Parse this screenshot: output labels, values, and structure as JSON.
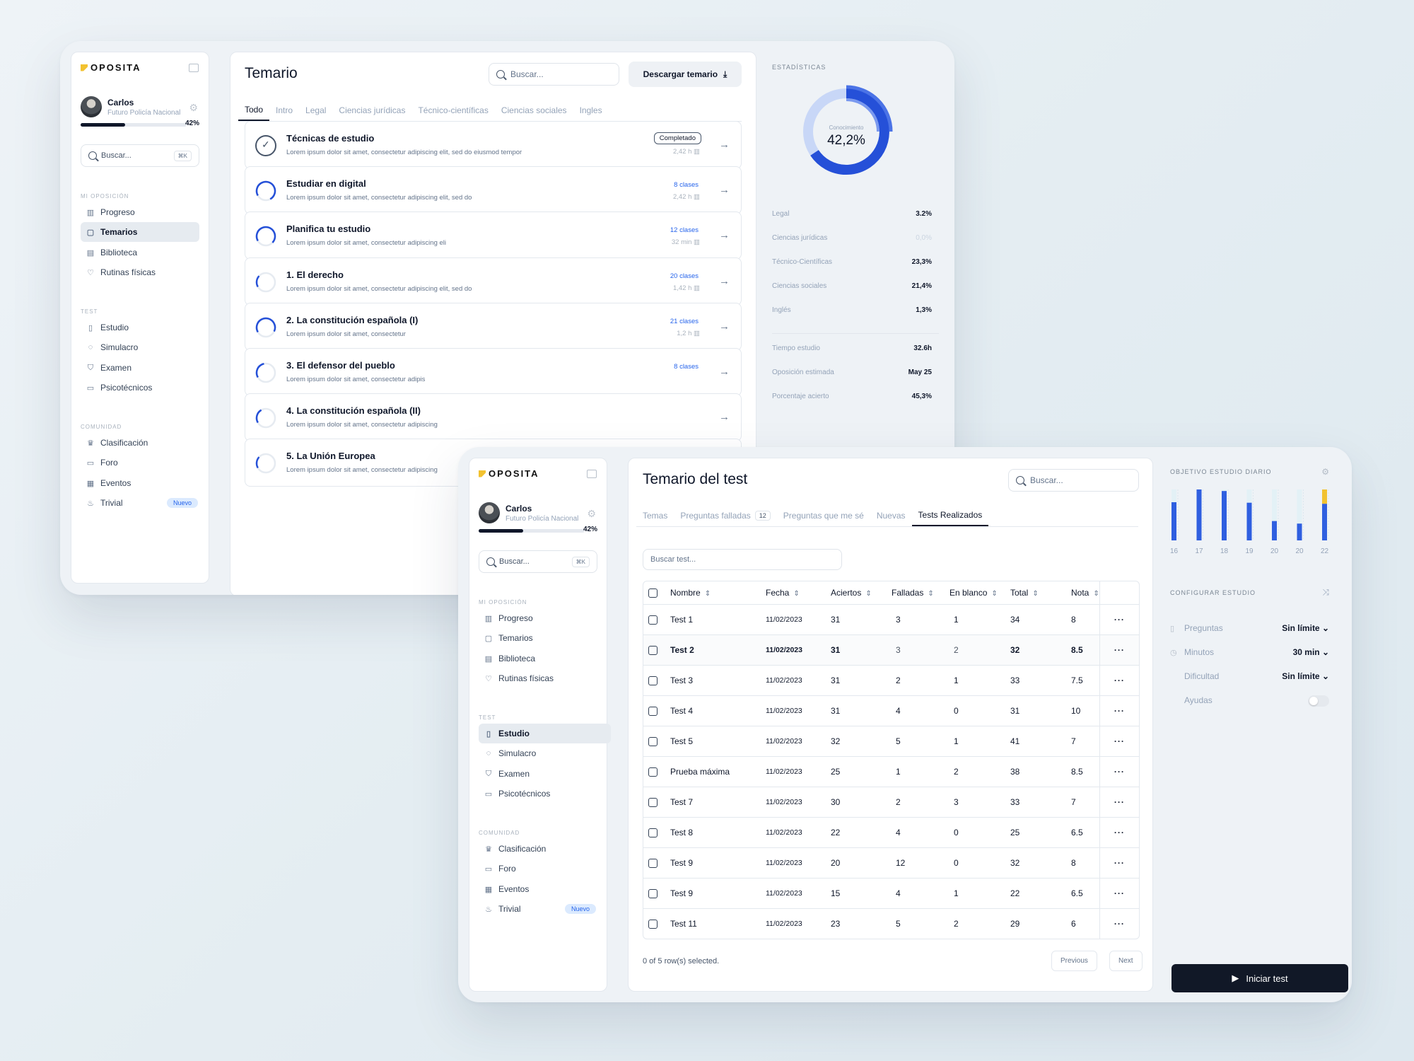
{
  "brand": {
    "name": "OPOSITA",
    "accent": "#f2c230",
    "primary": "#2563eb"
  },
  "sidebar": {
    "user_name": "Carlos",
    "user_role": "Futuro Policía Nacional",
    "progress_pct": "42%",
    "progress_value": 0.42,
    "search_placeholder": "Buscar...",
    "search_shortcut": "⌘K",
    "sections": {
      "mi_oposicion": "MI OPOSICIÓN",
      "test": "TEST",
      "comunidad": "COMUNIDAD"
    },
    "mi_oposicion": [
      "Progreso",
      "Temarios",
      "Biblioteca",
      "Rutinas físicas"
    ],
    "test": [
      "Estudio",
      "Simulacro",
      "Examen",
      "Psicotécnicos"
    ],
    "comunidad": [
      "Clasificación",
      "Foro",
      "Eventos",
      "Trivial"
    ],
    "new_badge": "Nuevo"
  },
  "temario": {
    "title": "Temario",
    "search_placeholder": "Buscar...",
    "download_label": "Descargar temario",
    "tabs": [
      "Todo",
      "Intro",
      "Legal",
      "Ciencias jurídicas",
      "Técnico-científicas",
      "Ciencias sociales",
      "Ingles"
    ],
    "items": [
      {
        "title": "Técnicas de estudio",
        "desc": "Lorem ipsum dolor sit amet, consectetur adipiscing elit, sed do eiusmod tempor",
        "badge": "Completado",
        "time": "2,42 h",
        "progress": 1
      },
      {
        "title": "Estudiar en digital",
        "desc": "Lorem ipsum dolor sit amet, consectetur adipiscing elit, sed do",
        "classes": "8 clases",
        "time": "2,42 h",
        "progress": 0.75
      },
      {
        "title": "Planifica tu estudio",
        "desc": "Lorem ipsum dolor sit amet, consectetur adipiscing eli",
        "classes": "12 clases",
        "time": "32 min",
        "progress": 0.7
      },
      {
        "title": "1. El derecho",
        "desc": "Lorem ipsum dolor sit amet, consectetur adipiscing elit, sed do",
        "classes": "20 clases",
        "time": "1,42 h",
        "progress": 0.2
      },
      {
        "title": "2. La constitución española (I)",
        "desc": "Lorem ipsum dolor sit amet, consectetur",
        "classes": "21 clases",
        "time": "1,2 h",
        "progress": 0.65
      },
      {
        "title": "3. El defensor del pueblo",
        "desc": "Lorem ipsum dolor sit amet, consectetur adipis",
        "classes": "8 clases",
        "time": "",
        "progress": 0.3
      },
      {
        "title": "4. La constitución española (II)",
        "desc": "Lorem ipsum dolor sit amet, consectetur adipiscing",
        "classes": "",
        "time": "",
        "progress": 0.25
      },
      {
        "title": "5. La Unión Europea",
        "desc": "Lorem ipsum dolor sit amet, consectetur adipiscing",
        "classes": "",
        "time": "",
        "progress": 0.2
      }
    ]
  },
  "stats": {
    "heading": "ESTADÍSTICAS",
    "donut_label": "Conocimiento",
    "donut_value": "42,2%",
    "rows": [
      {
        "label": "Legal",
        "value": "3.2%"
      },
      {
        "label": "Ciencias jurídicas",
        "value": "0,0%"
      },
      {
        "label": "Técnico-Científicas",
        "value": "23,3%"
      },
      {
        "label": "Ciencias sociales",
        "value": "21,4%"
      },
      {
        "label": "Inglés",
        "value": "1,3%"
      }
    ],
    "rows2": [
      {
        "label": "Tiempo estudio",
        "value": "32.6h"
      },
      {
        "label": "Oposición estimada",
        "value": "May 25"
      },
      {
        "label": "Porcentaje acierto",
        "value": "45,3%"
      }
    ]
  },
  "test": {
    "title": "Temario del test",
    "search_placeholder": "Buscar...",
    "tabs": [
      "Temas",
      "Preguntas falladas",
      "Preguntas que me sé",
      "Nuevas",
      "Tests Realizados"
    ],
    "failed_count": "12",
    "filter_placeholder": "Buscar test...",
    "columns": [
      "Nombre",
      "Fecha",
      "Aciertos",
      "Falladas",
      "En blanco",
      "Total",
      "Nota"
    ],
    "rows": [
      [
        "Test 1",
        "11/02/2023",
        "31",
        "3",
        "1",
        "34",
        "8"
      ],
      [
        "Test 2",
        "11/02/2023",
        "31",
        "3",
        "2",
        "32",
        "8.5"
      ],
      [
        "Test 3",
        "11/02/2023",
        "31",
        "2",
        "1",
        "33",
        "7.5"
      ],
      [
        "Test 4",
        "11/02/2023",
        "31",
        "4",
        "0",
        "31",
        "10"
      ],
      [
        "Test 5",
        "11/02/2023",
        "32",
        "5",
        "1",
        "41",
        "7"
      ],
      [
        "Prueba máxima",
        "11/02/2023",
        "25",
        "1",
        "2",
        "38",
        "8.5"
      ],
      [
        "Test 7",
        "11/02/2023",
        "30",
        "2",
        "3",
        "33",
        "7"
      ],
      [
        "Test 8",
        "11/02/2023",
        "22",
        "4",
        "0",
        "25",
        "6.5"
      ],
      [
        "Test 9",
        "11/02/2023",
        "20",
        "12",
        "0",
        "32",
        "8"
      ],
      [
        "Test 9",
        "11/02/2023",
        "15",
        "4",
        "1",
        "22",
        "6.5"
      ],
      [
        "Test 11",
        "11/02/2023",
        "23",
        "5",
        "2",
        "29",
        "6"
      ]
    ],
    "selection_text": "0 of 5 row(s) selected.",
    "prev_label": "Previous",
    "next_label": "Next"
  },
  "objective": {
    "heading": "OBJETIVO ESTUDIO DIARIO",
    "config_heading": "CONFIGURAR ESTUDIO",
    "config": [
      {
        "label": "Preguntas",
        "value": "Sin límite ⌄"
      },
      {
        "label": "Minutos",
        "value": "30 min ⌄"
      },
      {
        "label": "Dificultad",
        "value": "Sin límite ⌄"
      },
      {
        "label": "Ayudas",
        "value": ""
      }
    ],
    "start_label": "Iniciar test"
  },
  "chart_data": {
    "type": "bar",
    "categories": [
      "16",
      "17",
      "18",
      "19",
      "20",
      "20",
      "22"
    ],
    "values": [
      0.75,
      1.0,
      0.97,
      0.74,
      0.38,
      0.33,
      0.72
    ],
    "extra": [
      0,
      0,
      0,
      0,
      0,
      0,
      0.28
    ],
    "ylim": [
      0,
      1
    ],
    "colors": {
      "bar": "#2f5fe0",
      "extra": "#f2c230",
      "goal_bg": "#e3f1f6"
    }
  }
}
